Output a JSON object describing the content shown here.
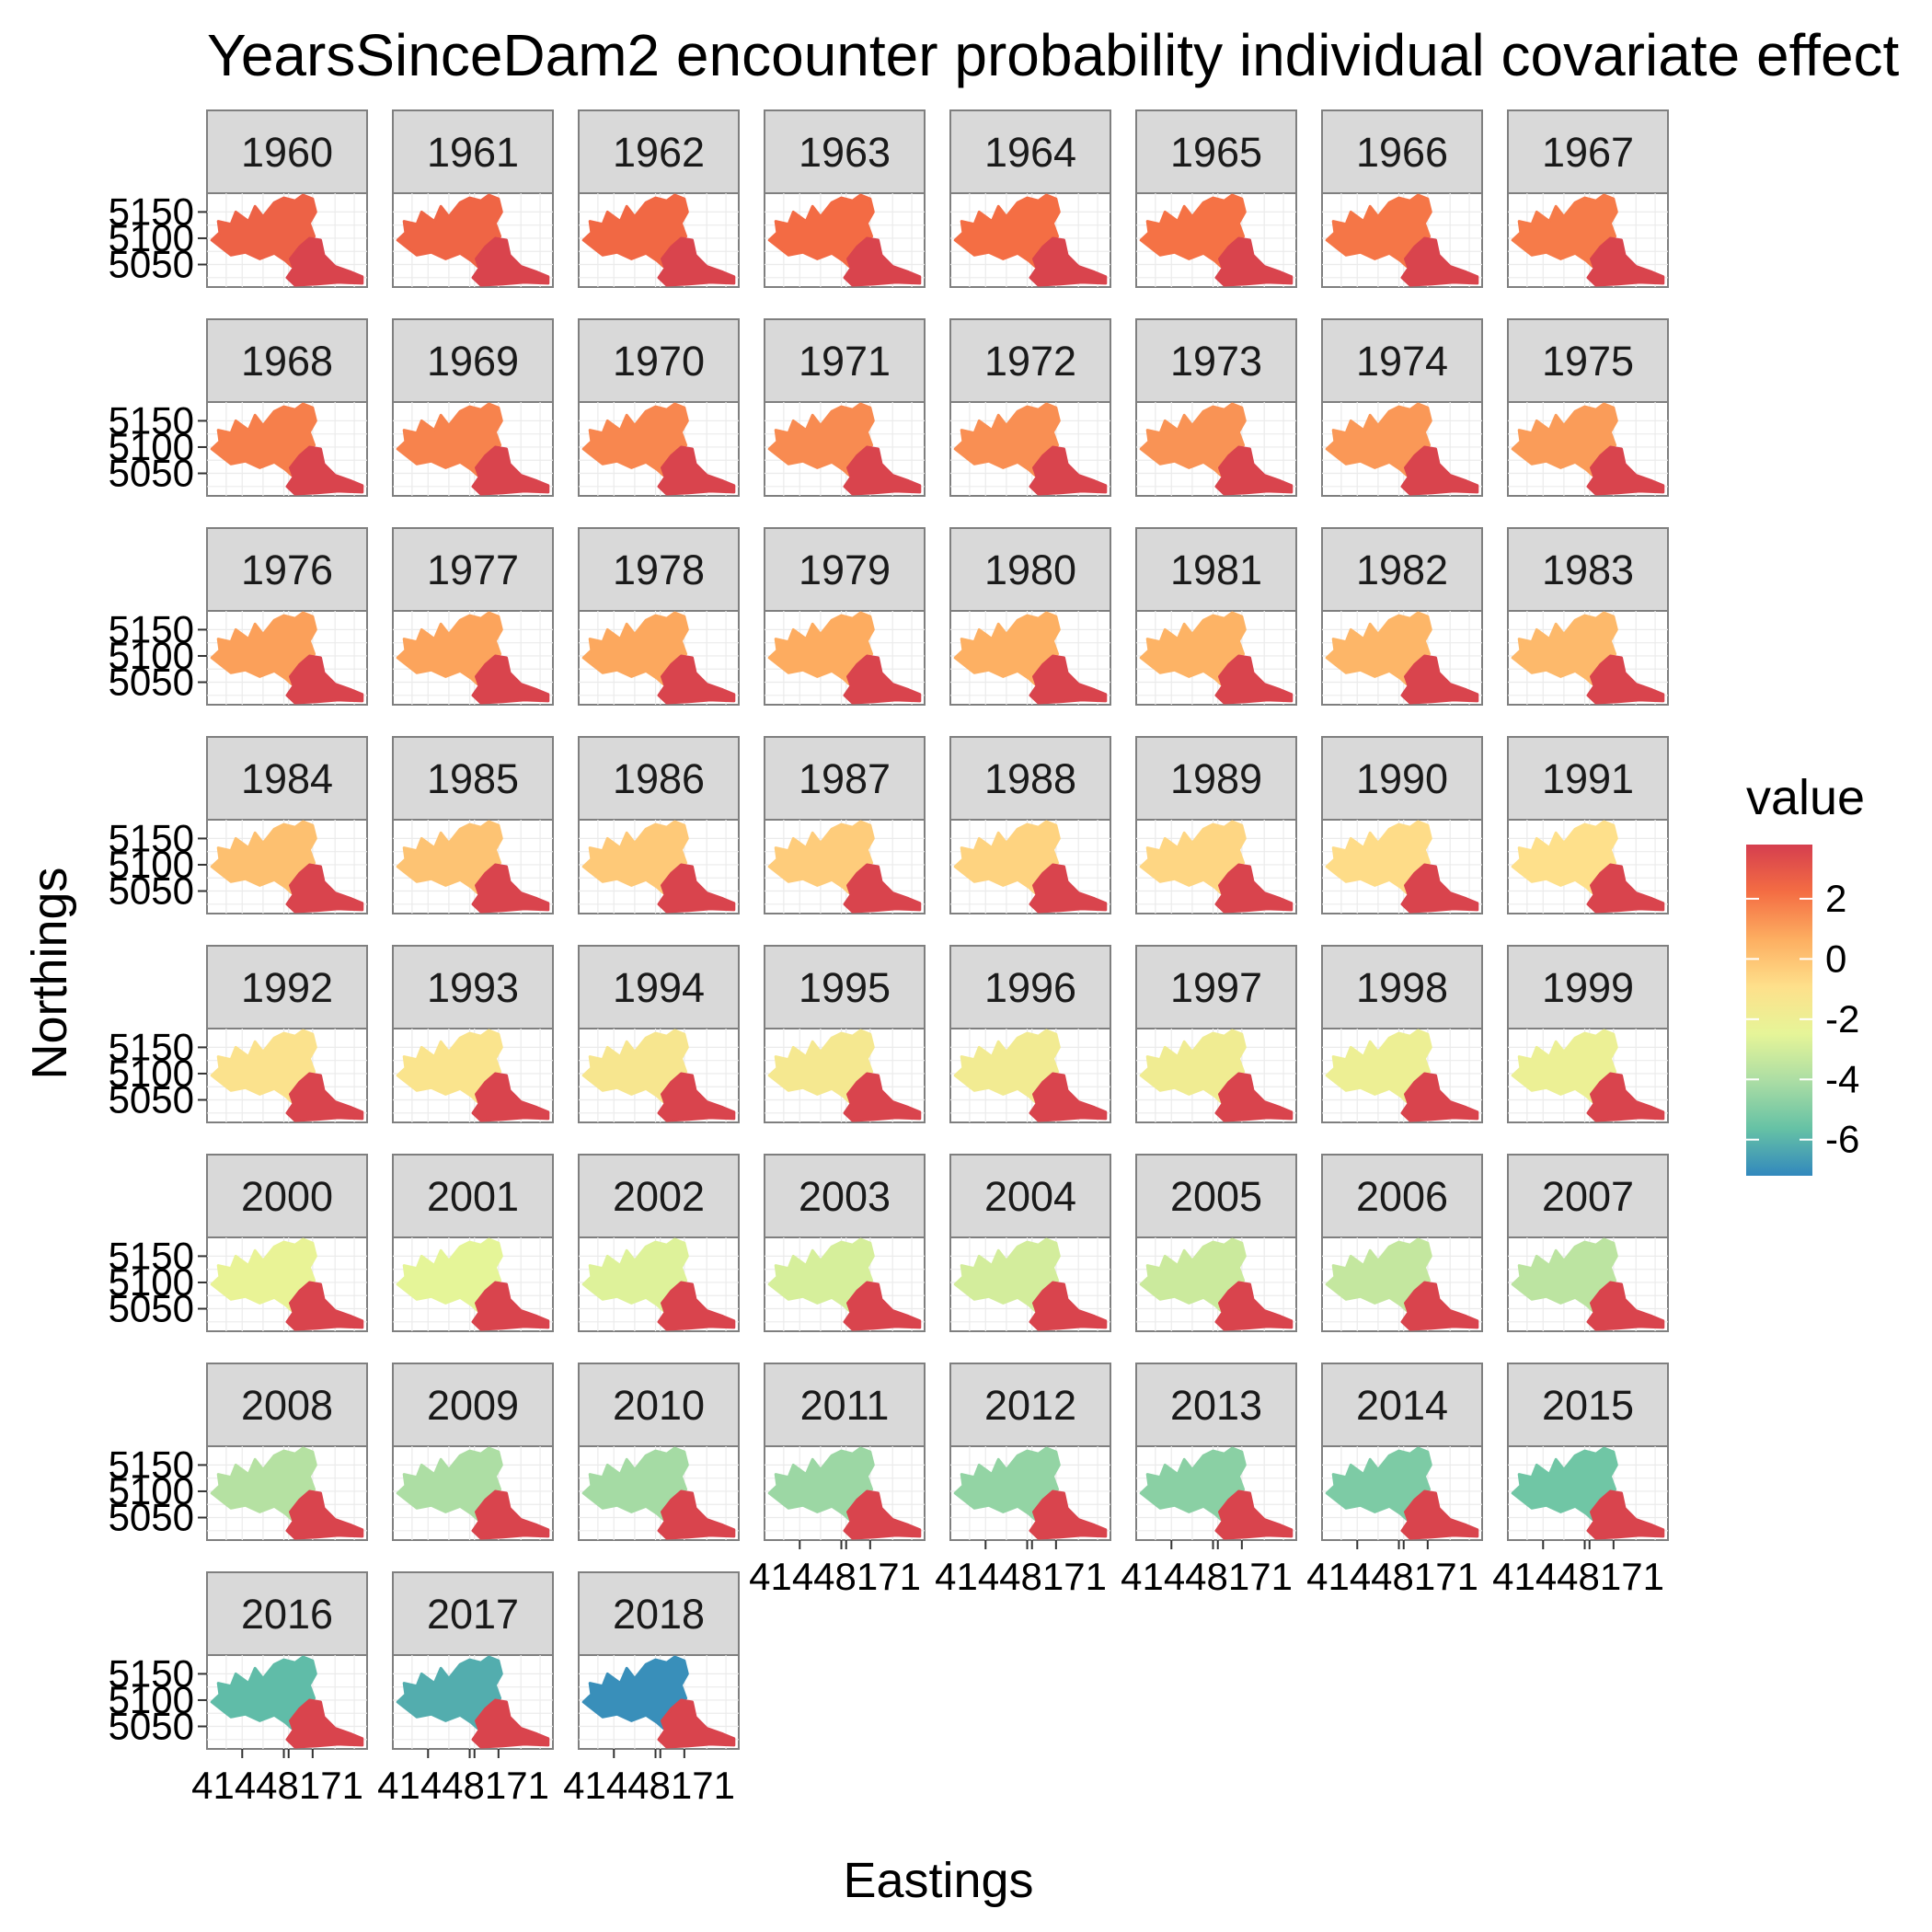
{
  "chart_data": {
    "type": "heatmap",
    "title": "YearsSinceDam2 encounter probability individual covariate effect",
    "xlabel": "Eastings",
    "ylabel": "Northings",
    "y_ticks": [
      "5050",
      "5100",
      "5150"
    ],
    "x_ticks": [
      "414",
      "416",
      "417",
      "418"
    ],
    "x_tick_text": "41448171",
    "legend": {
      "title": "value",
      "placement": "right",
      "range": [
        -7.2,
        3.8
      ],
      "ticks": [
        2,
        0,
        -2,
        -4,
        -6
      ],
      "tick_labels": [
        "2",
        "0",
        "-2",
        "-4",
        "-6"
      ],
      "palette": [
        "#3288bd",
        "#66c2a5",
        "#abdda4",
        "#e6f598",
        "#fee08b",
        "#fdae61",
        "#f46d43",
        "#d53e4f"
      ]
    },
    "facets": [
      {
        "label": "1960",
        "north_value": 2.6,
        "south_value": 3.6
      },
      {
        "label": "1961",
        "north_value": 2.5,
        "south_value": 3.6
      },
      {
        "label": "1962",
        "north_value": 2.4,
        "south_value": 3.6
      },
      {
        "label": "1963",
        "north_value": 2.3,
        "south_value": 3.6
      },
      {
        "label": "1964",
        "north_value": 2.2,
        "south_value": 3.6
      },
      {
        "label": "1965",
        "north_value": 2.1,
        "south_value": 3.6
      },
      {
        "label": "1966",
        "north_value": 2.0,
        "south_value": 3.6
      },
      {
        "label": "1967",
        "north_value": 1.9,
        "south_value": 3.6
      },
      {
        "label": "1968",
        "north_value": 1.8,
        "south_value": 3.6
      },
      {
        "label": "1969",
        "north_value": 1.7,
        "south_value": 3.6
      },
      {
        "label": "1970",
        "north_value": 1.6,
        "south_value": 3.6
      },
      {
        "label": "1971",
        "north_value": 1.5,
        "south_value": 3.6
      },
      {
        "label": "1972",
        "north_value": 1.4,
        "south_value": 3.6
      },
      {
        "label": "1973",
        "north_value": 1.3,
        "south_value": 3.6
      },
      {
        "label": "1974",
        "north_value": 1.2,
        "south_value": 3.6
      },
      {
        "label": "1975",
        "north_value": 1.1,
        "south_value": 3.6
      },
      {
        "label": "1976",
        "north_value": 1.0,
        "south_value": 3.6
      },
      {
        "label": "1977",
        "north_value": 0.9,
        "south_value": 3.6
      },
      {
        "label": "1978",
        "north_value": 0.8,
        "south_value": 3.6
      },
      {
        "label": "1979",
        "north_value": 0.7,
        "south_value": 3.6
      },
      {
        "label": "1980",
        "north_value": 0.6,
        "south_value": 3.6
      },
      {
        "label": "1981",
        "north_value": 0.5,
        "south_value": 3.6
      },
      {
        "label": "1982",
        "north_value": 0.4,
        "south_value": 3.6
      },
      {
        "label": "1983",
        "north_value": 0.3,
        "south_value": 3.6
      },
      {
        "label": "1984",
        "north_value": 0.1,
        "south_value": 3.6
      },
      {
        "label": "1985",
        "north_value": 0.0,
        "south_value": 3.6
      },
      {
        "label": "1986",
        "north_value": -0.2,
        "south_value": 3.6
      },
      {
        "label": "1987",
        "north_value": -0.3,
        "south_value": 3.6
      },
      {
        "label": "1988",
        "north_value": -0.5,
        "south_value": 3.6
      },
      {
        "label": "1989",
        "north_value": -0.6,
        "south_value": 3.6
      },
      {
        "label": "1990",
        "north_value": -0.8,
        "south_value": 3.6
      },
      {
        "label": "1991",
        "north_value": -0.9,
        "south_value": 3.6
      },
      {
        "label": "1992",
        "north_value": -1.1,
        "south_value": 3.6
      },
      {
        "label": "1993",
        "north_value": -1.2,
        "south_value": 3.6
      },
      {
        "label": "1994",
        "north_value": -1.4,
        "south_value": 3.6
      },
      {
        "label": "1995",
        "north_value": -1.5,
        "south_value": 3.6
      },
      {
        "label": "1996",
        "north_value": -1.7,
        "south_value": 3.6
      },
      {
        "label": "1997",
        "north_value": -1.8,
        "south_value": 3.6
      },
      {
        "label": "1998",
        "north_value": -2.0,
        "south_value": 3.6
      },
      {
        "label": "1999",
        "north_value": -2.1,
        "south_value": 3.6
      },
      {
        "label": "2000",
        "north_value": -2.3,
        "south_value": 3.6
      },
      {
        "label": "2001",
        "north_value": -2.5,
        "south_value": 3.6
      },
      {
        "label": "2002",
        "north_value": -2.7,
        "south_value": 3.6
      },
      {
        "label": "2003",
        "north_value": -2.9,
        "south_value": 3.6
      },
      {
        "label": "2004",
        "north_value": -3.0,
        "south_value": 3.6
      },
      {
        "label": "2005",
        "north_value": -3.2,
        "south_value": 3.6
      },
      {
        "label": "2006",
        "north_value": -3.4,
        "south_value": 3.6
      },
      {
        "label": "2007",
        "north_value": -3.6,
        "south_value": 3.6
      },
      {
        "label": "2008",
        "north_value": -3.8,
        "south_value": 3.6
      },
      {
        "label": "2009",
        "north_value": -4.0,
        "south_value": 3.6
      },
      {
        "label": "2010",
        "north_value": -4.2,
        "south_value": 3.6
      },
      {
        "label": "2011",
        "north_value": -4.4,
        "south_value": 3.6
      },
      {
        "label": "2012",
        "north_value": -4.6,
        "south_value": 3.6
      },
      {
        "label": "2013",
        "north_value": -4.8,
        "south_value": 3.6
      },
      {
        "label": "2014",
        "north_value": -5.1,
        "south_value": 3.6
      },
      {
        "label": "2015",
        "north_value": -5.4,
        "south_value": 3.6
      },
      {
        "label": "2016",
        "north_value": -5.8,
        "south_value": 3.6
      },
      {
        "label": "2017",
        "north_value": -6.2,
        "south_value": 3.6
      },
      {
        "label": "2018",
        "north_value": -7.0,
        "south_value": 3.6
      }
    ]
  }
}
